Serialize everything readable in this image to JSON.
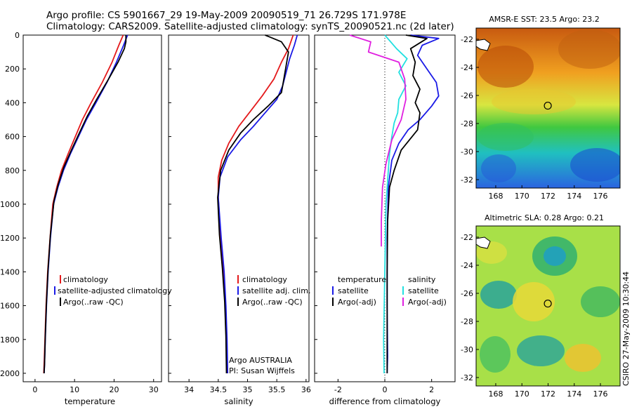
{
  "header": {
    "line1": "Argo profile: CS 5901667_29 19-May-2009 20090519_71 26.729S 171.978E",
    "line2": "Climatology: CARS2009. Satellite-adjusted climatology: synTS_20090521.nc (2d later)"
  },
  "colors": {
    "climatology": "#e41a1c",
    "satellite": "#1a1ae6",
    "argo": "#000000",
    "sal_satellite": "#22e0e0",
    "sal_argo": "#e020e0"
  },
  "chart_data": [
    {
      "id": "temperature",
      "type": "line",
      "xlabel": "temperature",
      "ylabel": "",
      "xlim": [
        -3,
        32
      ],
      "ylim": [
        2050,
        0
      ],
      "xticks": [
        0,
        10,
        20,
        30
      ],
      "yticks": [
        0,
        200,
        400,
        600,
        800,
        1000,
        1200,
        1400,
        1600,
        1800,
        2000
      ],
      "legend": [
        "climatology",
        "satellite-adjusted climatology",
        "Argo(..raw -QC)"
      ],
      "series": [
        {
          "name": "climatology",
          "color": "#e41a1c",
          "x": [
            22.3,
            21.2,
            19.5,
            17.0,
            14.2,
            12.0,
            10.2,
            8.4,
            6.7,
            5.5,
            4.5,
            3.8,
            3.2,
            2.8,
            2.5,
            2.3,
            2.2
          ],
          "y": [
            0,
            60,
            160,
            280,
            400,
            500,
            600,
            700,
            800,
            900,
            1000,
            1200,
            1400,
            1600,
            1800,
            1950,
            2000
          ]
        },
        {
          "name": "satellite-adjusted climatology",
          "color": "#1a1ae6",
          "x": [
            23.4,
            22.4,
            20.6,
            18.2,
            15.4,
            13.0,
            11.0,
            9.0,
            7.2,
            5.8,
            4.7,
            3.9,
            3.3,
            2.9,
            2.6,
            2.4,
            2.3
          ],
          "y": [
            0,
            60,
            160,
            280,
            400,
            500,
            600,
            700,
            800,
            900,
            1000,
            1200,
            1400,
            1600,
            1800,
            1950,
            2000
          ]
        },
        {
          "name": "Argo(..raw -QC)",
          "color": "#000000",
          "x": [
            23.0,
            23.0,
            22.6,
            21.0,
            18.6,
            15.6,
            13.2,
            11.2,
            9.2,
            7.3,
            5.9,
            4.8,
            3.9,
            3.3,
            2.9,
            2.6,
            2.4,
            2.3
          ],
          "y": [
            0,
            40,
            80,
            160,
            260,
            380,
            480,
            580,
            680,
            780,
            880,
            980,
            1180,
            1380,
            1580,
            1780,
            1950,
            2000
          ]
        }
      ]
    },
    {
      "id": "salinity",
      "type": "line",
      "xlabel": "salinity",
      "ylabel": "",
      "xlim": [
        33.65,
        36.05
      ],
      "ylim": [
        2050,
        0
      ],
      "xticks": [
        34,
        34.5,
        35,
        35.5,
        36
      ],
      "legend": [
        "climatology",
        "satellite adj. clim.",
        "Argo(..raw -QC)"
      ],
      "annotation": [
        "Argo AUSTRALIA",
        "PI: Susan Wijffels"
      ],
      "series": [
        {
          "name": "climatology",
          "color": "#e41a1c",
          "x": [
            35.78,
            35.7,
            35.58,
            35.45,
            35.25,
            35.05,
            34.85,
            34.68,
            34.56,
            34.5,
            34.5,
            34.54,
            34.59,
            34.62,
            34.64,
            34.65
          ],
          "y": [
            0,
            80,
            160,
            260,
            360,
            450,
            540,
            640,
            740,
            840,
            960,
            1200,
            1400,
            1600,
            1800,
            2000
          ]
        },
        {
          "name": "satellite adj. clim.",
          "color": "#1a1ae6",
          "x": [
            35.85,
            35.8,
            35.72,
            35.66,
            35.6,
            35.5,
            35.3,
            35.1,
            34.88,
            34.66,
            34.53,
            34.5,
            34.55,
            34.6,
            34.63,
            34.65,
            34.66
          ],
          "y": [
            0,
            60,
            140,
            220,
            300,
            380,
            460,
            540,
            620,
            720,
            840,
            960,
            1200,
            1400,
            1600,
            1800,
            2000
          ]
        },
        {
          "name": "Argo(..raw -QC)",
          "color": "#000000",
          "x": [
            35.3,
            35.58,
            35.7,
            35.66,
            35.62,
            35.58,
            35.35,
            35.1,
            34.88,
            34.68,
            34.54,
            34.49,
            34.52,
            34.57,
            34.61,
            34.63,
            34.64
          ],
          "y": [
            0,
            40,
            100,
            180,
            260,
            340,
            420,
            500,
            580,
            680,
            800,
            960,
            1180,
            1380,
            1580,
            1780,
            2000
          ]
        }
      ]
    },
    {
      "id": "difference",
      "type": "line",
      "xlabel": "difference from climatology",
      "ylabel": "",
      "xlim": [
        -3,
        3
      ],
      "ylim": [
        2050,
        0
      ],
      "xticks": [
        -2,
        0,
        2
      ],
      "legend_headers": [
        "temperature",
        "salinity"
      ],
      "legend": [
        "satellite",
        "Argo(-adj)",
        "satellite",
        "Argo(-adj)"
      ],
      "series": [
        {
          "name": "temperature satellite",
          "color": "#1a1ae6",
          "x": [
            1.1,
            2.3,
            1.6,
            1.4,
            1.8,
            2.2,
            2.3,
            2.0,
            1.5,
            1.0,
            0.6,
            0.3,
            0.15,
            0.1,
            0.1,
            0.12,
            0.1
          ],
          "y": [
            0,
            20,
            60,
            120,
            200,
            280,
            360,
            420,
            500,
            560,
            640,
            740,
            900,
            1200,
            1600,
            1900,
            2000
          ]
        },
        {
          "name": "temperature Argo(-adj)",
          "color": "#000000",
          "x": [
            0.9,
            1.8,
            1.1,
            1.3,
            1.2,
            1.5,
            1.3,
            1.5,
            1.4,
            0.7,
            0.4,
            0.2,
            0.12,
            0.1,
            0.1,
            0.1
          ],
          "y": [
            0,
            20,
            80,
            160,
            240,
            320,
            400,
            460,
            560,
            680,
            800,
            900,
            1100,
            1400,
            1800,
            2000
          ]
        },
        {
          "name": "salinity satellite",
          "color": "#22e0e0",
          "x": [
            0.0,
            0.5,
            0.95,
            0.6,
            0.9,
            0.6,
            0.55,
            0.4,
            0.3,
            0.2,
            0.15,
            0.05,
            0.0,
            -0.05,
            -0.03
          ],
          "y": [
            0,
            80,
            140,
            220,
            300,
            380,
            460,
            520,
            600,
            700,
            800,
            1000,
            1400,
            1800,
            2000
          ]
        },
        {
          "name": "salinity Argo(-adj)",
          "color": "#e020e0",
          "x": [
            -1.5,
            -0.6,
            -0.7,
            0.6,
            0.85,
            0.9,
            0.7,
            0.3,
            0.05,
            -0.1,
            -0.15,
            -0.15
          ],
          "y": [
            0,
            40,
            100,
            160,
            260,
            380,
            500,
            620,
            760,
            900,
            1100,
            1250
          ]
        }
      ]
    },
    {
      "id": "sst_map",
      "type": "heatmap",
      "title": "AMSR-E SST: 23.5 Argo: 23.2",
      "xlim": [
        166.5,
        177.5
      ],
      "ylim": [
        -32.6,
        -21.2
      ],
      "xticks": [
        168,
        170,
        172,
        174,
        176
      ],
      "yticks": [
        -22,
        -24,
        -26,
        -28,
        -30,
        -32
      ],
      "marker": {
        "lon": 171.978,
        "lat": -26.729
      }
    },
    {
      "id": "sla_map",
      "type": "heatmap",
      "title": "Altimetric SLA: 0.28 Argo: 0.21",
      "xlim": [
        166.5,
        177.5
      ],
      "ylim": [
        -32.6,
        -21.2
      ],
      "xticks": [
        168,
        170,
        172,
        174,
        176
      ],
      "yticks": [
        -22,
        -24,
        -26,
        -28,
        -30,
        -32
      ],
      "marker": {
        "lon": 171.978,
        "lat": -26.729
      }
    }
  ],
  "footer": {
    "credit": "CSIRO 27-May-2009 10:30:44"
  }
}
